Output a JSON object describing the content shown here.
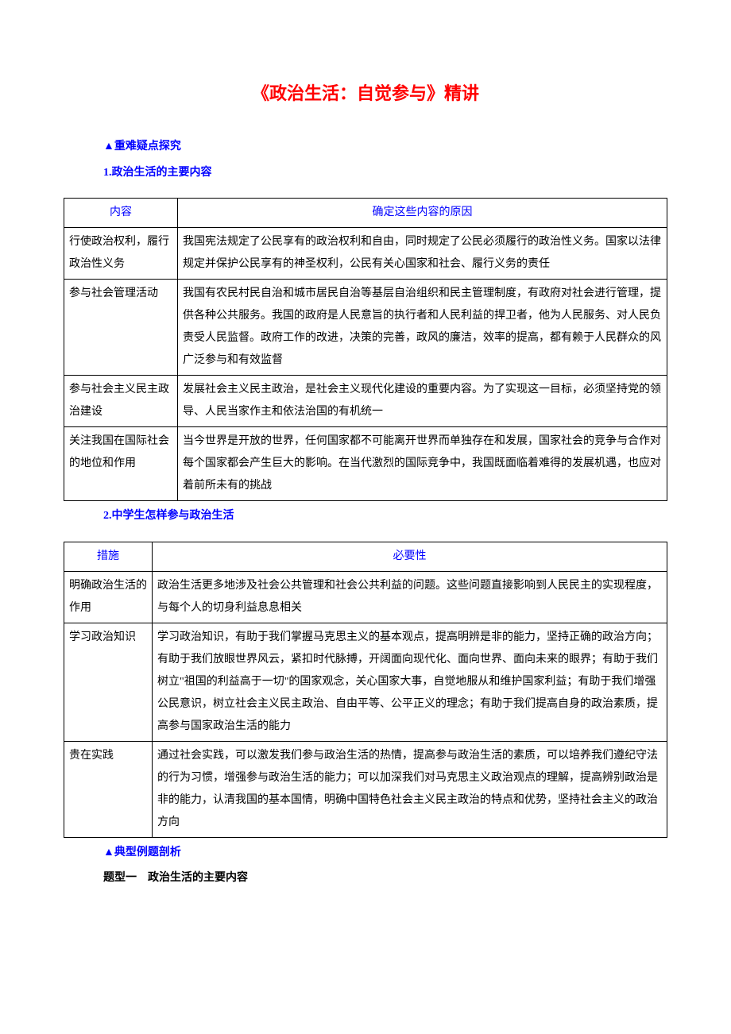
{
  "title": "《政治生活：自觉参与》精讲",
  "section1": {
    "heading": "▲重难疑点探究",
    "sub1": "1.政治生活的主要内容",
    "table1": {
      "headers": [
        "内容",
        "确定这些内容的原因"
      ],
      "rows": [
        [
          "行使政治权利，履行政治性义务",
          "我国宪法规定了公民享有的政治权利和自由，同时规定了公民必须履行的政治性义务。国家以法律规定并保护公民享有的神圣权利，公民有关心国家和社会、履行义务的责任"
        ],
        [
          "参与社会管理活动",
          "我国有农民村民自治和城市居民自治等基层自治组织和民主管理制度，有政府对社会进行管理，提供各种公共服务。我国的政府是人民意旨的执行者和人民利益的捍卫者，他为人民服务、对人民负责受人民监督。政府工作的改进，决策的完善，政风的廉洁，效率的提高，都有赖于人民群众的风广泛参与和有效监督"
        ],
        [
          "参与社会主义民主政治建设",
          "发展社会主义民主政治，是社会主义现代化建设的重要内容。为了实现这一目标，必须坚持党的领导、人民当家作主和依法治国的有机统一"
        ],
        [
          "关注我国在国际社会的地位和作用",
          "当今世界是开放的世界，任何国家都不可能离开世界而单独存在和发展，国家社会的竞争与合作对每个国家都会产生巨大的影响。在当代激烈的国际竞争中，我国既面临着难得的发展机遇，也应对着前所未有的挑战"
        ]
      ]
    },
    "sub2": "2.中学生怎样参与政治生活",
    "table2": {
      "headers": [
        "措施",
        "必要性"
      ],
      "rows": [
        [
          "明确政治生活的作用",
          "政治生活更多地涉及社会公共管理和社会公共利益的问题。这些问题直接影响到人民民主的实现程度，与每个人的切身利益息息相关"
        ],
        [
          "学习政治知识",
          "学习政治知识，有助于我们掌握马克思主义的基本观点，提高明辨是非的能力，坚持正确的政治方向；有助于我们放眼世界风云，紧扣时代脉搏，开阔面向现代化、面向世界、面向未来的眼界；有助于我们树立\"祖国的利益高于一切\"的国家观念，关心国家大事，自觉地服从和维护国家利益；有助于我们增强公民意识，树立社会主义民主政治、自由平等、公平正义的理念；有助于我们提高自身的政治素质，提高参与国家政治生活的能力"
        ],
        [
          "贵在实践",
          "通过社会实践，可以激发我们参与政治生活的热情，提高参与政治生活的素质，可以培养我们遵纪守法的行为习惯，增强参与政治生活的能力；可以加深我们对马克思主义政治观点的理解，提高辨别政治是非的能力，认清我国的基本国情，明确中国特色社会主义民主政治的特点和优势，坚持社会主义的政治方向"
        ]
      ]
    }
  },
  "section2": {
    "heading": "▲典型例题剖析",
    "sub1": "题型一　政治生活的主要内容"
  },
  "style": {
    "title_color": "#ff0000",
    "heading_color": "#0000ff",
    "body_color": "#000000",
    "border_color": "#000000",
    "background": "#ffffff",
    "title_fontsize": 22,
    "body_fontsize": 14,
    "line_height": 2.0
  }
}
